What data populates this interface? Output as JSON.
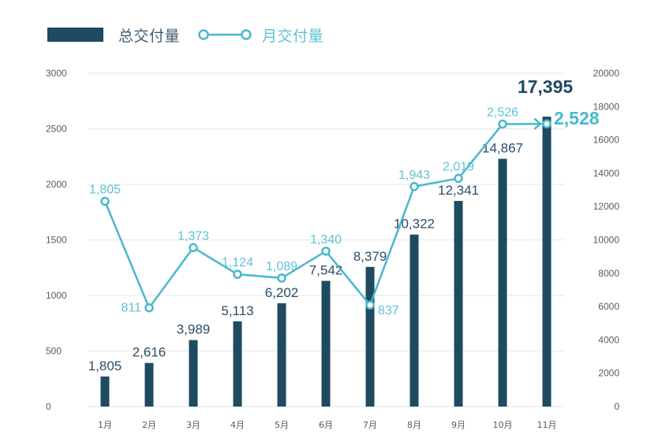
{
  "colors": {
    "bar": "#1e4a62",
    "line": "#49b8cc",
    "line_label": "#5fc2d6",
    "grid": "#e7ecf0",
    "tick": "#555c63"
  },
  "legend": {
    "total_label": "总交付量",
    "monthly_label": "月交付量",
    "total_icon": "bar-swatch",
    "monthly_icon": "line-with-circle-markers"
  },
  "chart_data": {
    "type": "bar+line",
    "title": "",
    "categories": [
      "1月",
      "2月",
      "3月",
      "4月",
      "5月",
      "6月",
      "7月",
      "8月",
      "9月",
      "10月",
      "11月"
    ],
    "series": [
      {
        "name": "总交付量",
        "type": "bar",
        "axis": "right",
        "values": [
          1805,
          2616,
          3989,
          5113,
          6202,
          7542,
          8379,
          10322,
          12341,
          14867,
          17395
        ],
        "labels": [
          "1,805",
          "2,616",
          "3,989",
          "5,113",
          "6,202",
          "7,542",
          "8,379",
          "10,322",
          "12,341",
          "14,867",
          "17,395"
        ]
      },
      {
        "name": "月交付量",
        "type": "line",
        "axis": "left",
        "values": [
          1805,
          811,
          1373,
          1124,
          1089,
          1340,
          837,
          1943,
          2019,
          2526,
          2528
        ],
        "labels": [
          "1,805",
          "811",
          "1,373",
          "1,124",
          "1,089",
          "1,340",
          "837",
          "1,943",
          "2,019",
          "2,526",
          "2,528"
        ]
      }
    ],
    "y_left": {
      "min": 0,
      "max": 3000,
      "ticks": [
        "0",
        "500",
        "1000",
        "1500",
        "2000",
        "2500",
        "3000"
      ]
    },
    "y_right": {
      "min": 0,
      "max": 20000,
      "ticks": [
        "0",
        "2000",
        "4000",
        "6000",
        "8000",
        "10000",
        "12000",
        "14000",
        "16000",
        "18000",
        "20000"
      ]
    },
    "grid": true,
    "legend_position": "top-left",
    "highlight": {
      "total": "17,395",
      "monthly": "2,528"
    }
  }
}
